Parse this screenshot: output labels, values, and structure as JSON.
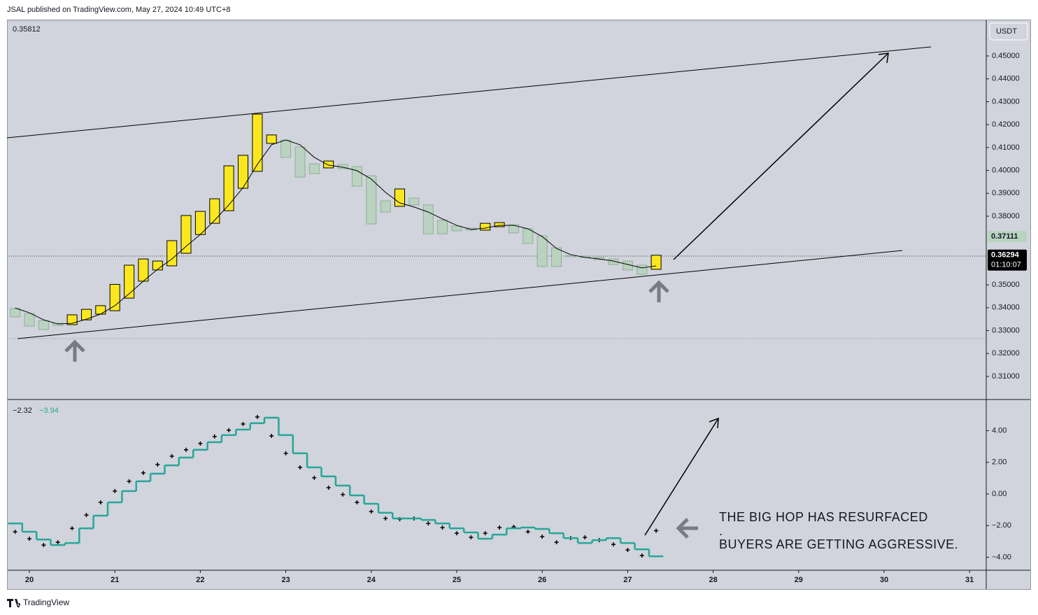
{
  "header": "JSAL published on TradingView.com, May 27, 2024 10:49 UTC+8",
  "footer": "TradingView",
  "annotations": [
    "THE BIG HOP HAS RESURFACED",
    ".",
    "BUYERS ARE GETTING AGGRESSIVE."
  ],
  "chart_data": [
    {
      "type": "candlestick",
      "pane_label": "0.35812",
      "currency": "USDT",
      "x": [
        19.833,
        20,
        20.167,
        20.333,
        20.5,
        20.667,
        20.833,
        21,
        21.167,
        21.333,
        21.5,
        21.667,
        21.833,
        22,
        22.167,
        22.333,
        22.5,
        22.667,
        22.833,
        23,
        23.167,
        23.333,
        23.5,
        23.667,
        23.833,
        24,
        24.167,
        24.333,
        24.5,
        24.667,
        24.833,
        25,
        25.167,
        25.333,
        25.5,
        25.667,
        25.833,
        26,
        26.167,
        26.333,
        26.5,
        26.667,
        26.833,
        27,
        27.167,
        27.333
      ],
      "open": [
        0.3396,
        0.3375,
        0.3344,
        0.3332,
        0.3326,
        0.3347,
        0.3372,
        0.3387,
        0.3442,
        0.3516,
        0.3565,
        0.3583,
        0.3638,
        0.372,
        0.3769,
        0.3824,
        0.3922,
        0.3996,
        0.4118,
        0.4133,
        0.4103,
        0.4029,
        0.4011,
        0.4026,
        0.4017,
        0.3977,
        0.3867,
        0.3843,
        0.3879,
        0.3849,
        0.3782,
        0.3757,
        0.3748,
        0.3739,
        0.3754,
        0.3763,
        0.3745,
        0.3714,
        0.3662,
        0.3629,
        0.3626,
        0.362,
        0.3613,
        0.3604,
        0.3586,
        0.3568
      ],
      "close": [
        0.336,
        0.332,
        0.3305,
        0.3323,
        0.3369,
        0.3393,
        0.3409,
        0.3502,
        0.3586,
        0.3613,
        0.3604,
        0.3693,
        0.3803,
        0.3821,
        0.3876,
        0.402,
        0.4066,
        0.4246,
        0.4155,
        0.4057,
        0.3971,
        0.3986,
        0.4041,
        0.4008,
        0.3931,
        0.3766,
        0.3818,
        0.3919,
        0.3849,
        0.3723,
        0.3723,
        0.3736,
        0.3739,
        0.3769,
        0.3772,
        0.3727,
        0.3681,
        0.358,
        0.358,
        0.3623,
        0.362,
        0.361,
        0.3589,
        0.3565,
        0.3546,
        0.36294
      ],
      "up_color": "#fbe71e",
      "down_color": "#b9d3c0",
      "ma": {
        "color": "#000000",
        "values": [
          0.3399,
          0.3378,
          0.3347,
          0.3329,
          0.3332,
          0.335,
          0.3372,
          0.3409,
          0.3461,
          0.3516,
          0.3568,
          0.3613,
          0.3668,
          0.372,
          0.3782,
          0.3849,
          0.3925,
          0.4026,
          0.4112,
          0.4133,
          0.4112,
          0.4057,
          0.4023,
          0.4014,
          0.3999,
          0.3962,
          0.3904,
          0.3858,
          0.384,
          0.3818,
          0.3788,
          0.376,
          0.3742,
          0.3748,
          0.376,
          0.376,
          0.3745,
          0.3711,
          0.3659,
          0.3632,
          0.362,
          0.3613,
          0.3604,
          0.3589,
          0.3574,
          0.3583
        ]
      },
      "ylim": [
        0.2999,
        0.4659
      ],
      "yticks": [
        {
          "value": 0.45,
          "label": "0.45000"
        },
        {
          "value": 0.44,
          "label": "0.44000"
        },
        {
          "value": 0.43,
          "label": "0.43000"
        },
        {
          "value": 0.42,
          "label": "0.42000"
        },
        {
          "value": 0.41,
          "label": "0.41000"
        },
        {
          "value": 0.4,
          "label": "0.40000"
        },
        {
          "value": 0.39,
          "label": "0.39000"
        },
        {
          "value": 0.38,
          "label": "0.38000"
        },
        {
          "value": 0.35,
          "label": "0.35000"
        },
        {
          "value": 0.34,
          "label": "0.34000"
        },
        {
          "value": 0.33,
          "label": "0.33000"
        },
        {
          "value": 0.32,
          "label": "0.32000"
        },
        {
          "value": 0.31,
          "label": "0.31000"
        }
      ],
      "price_tags": [
        {
          "value": 0.37111,
          "label": "0.37111",
          "color": "#b9d3c0"
        },
        {
          "value": 0.36294,
          "label": "0.36294",
          "color": "#000000"
        }
      ],
      "countdown": "01:10:07",
      "xlim": [
        19.738,
        31.195
      ],
      "xticks": [
        20,
        21,
        22,
        23,
        24,
        25,
        26,
        27,
        28,
        29,
        30,
        31
      ]
    },
    {
      "type": "line",
      "legend_values": [
        "−2.32",
        "−3.94"
      ],
      "series": [
        {
          "style": "cross",
          "color": "#000000",
          "values": [
            -2.39,
            -2.83,
            -3.23,
            -3.05,
            -2.17,
            -1.33,
            -0.53,
            0.18,
            0.8,
            1.33,
            1.86,
            2.39,
            2.79,
            3.19,
            3.63,
            4.03,
            4.42,
            4.87,
            3.67,
            2.57,
            1.68,
            1.02,
            0.4,
            -0.04,
            -0.53,
            -1.11,
            -1.55,
            -1.59,
            -1.55,
            -1.86,
            -2.12,
            -2.48,
            -2.74,
            -2.48,
            -2.12,
            -2.08,
            -2.39,
            -2.7,
            -3.05,
            -2.79,
            -2.74,
            -2.92,
            -3.19,
            -3.54,
            -3.89,
            -2.32
          ]
        },
        {
          "style": "step",
          "color": "#26a69a",
          "values": [
            -1.86,
            -2.39,
            -2.88,
            -3.23,
            -3.1,
            -2.17,
            -1.37,
            -0.53,
            0.18,
            0.8,
            1.28,
            1.81,
            2.3,
            2.79,
            3.27,
            3.72,
            4.07,
            4.47,
            4.82,
            3.72,
            2.57,
            1.68,
            1.11,
            0.53,
            -0.09,
            -0.62,
            -1.19,
            -1.55,
            -1.55,
            -1.64,
            -1.86,
            -2.17,
            -2.43,
            -2.83,
            -2.57,
            -2.17,
            -2.12,
            -2.21,
            -2.48,
            -2.79,
            -3.1,
            -2.92,
            -2.79,
            -3.1,
            -3.5,
            -3.94
          ]
        }
      ],
      "ylim": [
        -4.82,
        5.97
      ],
      "yticks": [
        {
          "value": 4,
          "label": "4.00"
        },
        {
          "value": 2,
          "label": "2.00"
        },
        {
          "value": 0,
          "label": "0.00"
        },
        {
          "value": -2,
          "label": "−2.00"
        },
        {
          "value": -4,
          "label": "−4.00"
        }
      ]
    }
  ]
}
